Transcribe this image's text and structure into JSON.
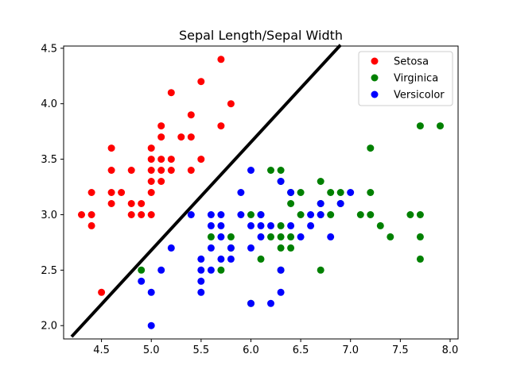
{
  "chart_data": {
    "type": "scatter",
    "title": "Sepal Length/Sepal Width",
    "xlabel": "",
    "ylabel": "",
    "xlim": [
      4.12,
      8.08
    ],
    "ylim": [
      1.88,
      4.52
    ],
    "xticks": [
      4.5,
      5.0,
      5.5,
      6.0,
      6.5,
      7.0,
      7.5,
      8.0
    ],
    "yticks": [
      2.0,
      2.5,
      3.0,
      3.5,
      4.0,
      4.5
    ],
    "xtick_labels": [
      "4.5",
      "5.0",
      "5.5",
      "6.0",
      "6.5",
      "7.0",
      "7.5",
      "8.0"
    ],
    "ytick_labels": [
      "2.0",
      "2.5",
      "3.0",
      "3.5",
      "4.0",
      "4.5"
    ],
    "grid": false,
    "legend_position": "top-right",
    "series": [
      {
        "name": "Setosa",
        "color": "#ff0000",
        "points": [
          [
            4.3,
            3.0
          ],
          [
            4.4,
            2.9
          ],
          [
            4.4,
            3.0
          ],
          [
            4.4,
            3.2
          ],
          [
            4.5,
            2.3
          ],
          [
            4.6,
            3.1
          ],
          [
            4.6,
            3.2
          ],
          [
            4.6,
            3.4
          ],
          [
            4.6,
            3.6
          ],
          [
            4.7,
            3.2
          ],
          [
            4.8,
            3.0
          ],
          [
            4.8,
            3.1
          ],
          [
            4.8,
            3.4
          ],
          [
            4.9,
            3.0
          ],
          [
            4.9,
            3.1
          ],
          [
            5.0,
            3.0
          ],
          [
            5.0,
            3.2
          ],
          [
            5.0,
            3.3
          ],
          [
            5.0,
            3.4
          ],
          [
            5.0,
            3.5
          ],
          [
            5.0,
            3.6
          ],
          [
            5.1,
            3.3
          ],
          [
            5.1,
            3.4
          ],
          [
            5.1,
            3.5
          ],
          [
            5.1,
            3.7
          ],
          [
            5.1,
            3.8
          ],
          [
            5.2,
            3.4
          ],
          [
            5.2,
            3.5
          ],
          [
            5.2,
            4.1
          ],
          [
            5.3,
            3.7
          ],
          [
            5.4,
            3.4
          ],
          [
            5.4,
            3.7
          ],
          [
            5.4,
            3.9
          ],
          [
            5.5,
            3.5
          ],
          [
            5.5,
            4.2
          ],
          [
            5.7,
            3.8
          ],
          [
            5.7,
            4.4
          ],
          [
            5.8,
            4.0
          ]
        ]
      },
      {
        "name": "Virginica",
        "color": "#008000",
        "points": [
          [
            4.9,
            2.5
          ],
          [
            5.6,
            2.8
          ],
          [
            5.7,
            2.5
          ],
          [
            5.8,
            2.7
          ],
          [
            5.8,
            2.8
          ],
          [
            6.0,
            3.0
          ],
          [
            6.0,
            2.2
          ],
          [
            6.1,
            2.6
          ],
          [
            6.1,
            3.0
          ],
          [
            6.2,
            2.8
          ],
          [
            6.2,
            3.4
          ],
          [
            6.3,
            2.5
          ],
          [
            6.3,
            2.7
          ],
          [
            6.3,
            2.8
          ],
          [
            6.3,
            2.9
          ],
          [
            6.3,
            3.3
          ],
          [
            6.3,
            3.4
          ],
          [
            6.4,
            2.7
          ],
          [
            6.4,
            2.8
          ],
          [
            6.4,
            3.1
          ],
          [
            6.4,
            3.2
          ],
          [
            6.5,
            3.0
          ],
          [
            6.5,
            3.2
          ],
          [
            6.7,
            2.5
          ],
          [
            6.7,
            3.0
          ],
          [
            6.7,
            3.1
          ],
          [
            6.7,
            3.3
          ],
          [
            6.8,
            3.0
          ],
          [
            6.8,
            3.2
          ],
          [
            6.9,
            3.1
          ],
          [
            6.9,
            3.2
          ],
          [
            7.1,
            3.0
          ],
          [
            7.2,
            3.0
          ],
          [
            7.2,
            3.2
          ],
          [
            7.2,
            3.6
          ],
          [
            7.3,
            2.9
          ],
          [
            7.4,
            2.8
          ],
          [
            7.6,
            3.0
          ],
          [
            7.7,
            2.6
          ],
          [
            7.7,
            2.8
          ],
          [
            7.7,
            3.0
          ],
          [
            7.7,
            3.8
          ],
          [
            7.9,
            3.8
          ]
        ]
      },
      {
        "name": "Versicolor",
        "color": "#0000ff",
        "points": [
          [
            4.9,
            2.4
          ],
          [
            5.0,
            2.0
          ],
          [
            5.0,
            2.3
          ],
          [
            5.1,
            2.5
          ],
          [
            5.2,
            2.7
          ],
          [
            5.4,
            3.0
          ],
          [
            5.5,
            2.3
          ],
          [
            5.5,
            2.4
          ],
          [
            5.5,
            2.5
          ],
          [
            5.5,
            2.6
          ],
          [
            5.6,
            2.5
          ],
          [
            5.6,
            2.7
          ],
          [
            5.6,
            2.9
          ],
          [
            5.6,
            3.0
          ],
          [
            5.7,
            2.6
          ],
          [
            5.7,
            2.8
          ],
          [
            5.7,
            2.9
          ],
          [
            5.7,
            3.0
          ],
          [
            5.8,
            2.6
          ],
          [
            5.8,
            2.7
          ],
          [
            5.9,
            3.0
          ],
          [
            5.9,
            3.2
          ],
          [
            6.0,
            2.2
          ],
          [
            6.0,
            2.7
          ],
          [
            6.0,
            2.9
          ],
          [
            6.0,
            3.4
          ],
          [
            6.1,
            2.8
          ],
          [
            6.1,
            2.9
          ],
          [
            6.1,
            3.0
          ],
          [
            6.2,
            2.2
          ],
          [
            6.2,
            2.9
          ],
          [
            6.3,
            2.3
          ],
          [
            6.3,
            2.5
          ],
          [
            6.3,
            3.3
          ],
          [
            6.4,
            2.9
          ],
          [
            6.4,
            3.2
          ],
          [
            6.5,
            2.8
          ],
          [
            6.6,
            2.9
          ],
          [
            6.6,
            3.0
          ],
          [
            6.7,
            3.0
          ],
          [
            6.7,
            3.1
          ],
          [
            6.8,
            2.8
          ],
          [
            6.9,
            3.1
          ],
          [
            7.0,
            3.2
          ]
        ]
      }
    ],
    "decision_line": {
      "color": "#000000",
      "from": [
        4.2,
        1.9
      ],
      "to": [
        6.9,
        4.53
      ]
    }
  }
}
